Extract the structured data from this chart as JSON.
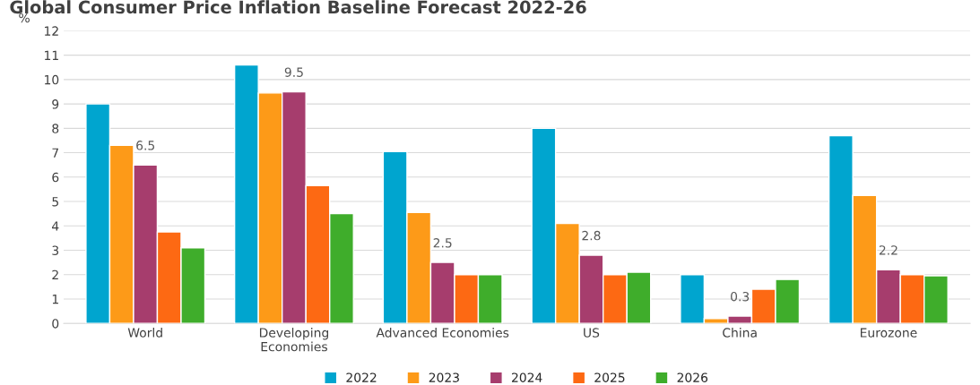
{
  "chart_data": {
    "type": "bar",
    "title": "Global Consumer Price Inflation Baseline Forecast 2022-26",
    "ylabel": "%",
    "categories": [
      "World",
      "Developing\nEconomies",
      "Advanced Economies",
      "US",
      "China",
      "Eurozone"
    ],
    "series": [
      {
        "name": "2022",
        "color": "#00a5cf",
        "values": [
          9.0,
          10.6,
          7.05,
          8.0,
          2.0,
          7.7
        ]
      },
      {
        "name": "2023",
        "color": "#fd9a18",
        "values": [
          7.3,
          9.45,
          4.55,
          4.1,
          0.2,
          5.25
        ]
      },
      {
        "name": "2024",
        "color": "#a63d6d",
        "values": [
          6.5,
          9.5,
          2.5,
          2.8,
          0.3,
          2.2
        ],
        "value_labels": [
          "6.5",
          "9.5",
          "2.5",
          "2.8",
          "0.3",
          "2.2"
        ]
      },
      {
        "name": "2025",
        "color": "#fd6913",
        "values": [
          3.75,
          5.65,
          2.0,
          2.0,
          1.4,
          2.0
        ]
      },
      {
        "name": "2026",
        "color": "#3fad2b",
        "values": [
          3.1,
          4.5,
          2.0,
          2.1,
          1.8,
          1.95
        ]
      }
    ],
    "ylim": [
      0,
      12
    ],
    "yticks": [
      0,
      1,
      2,
      3,
      4,
      5,
      6,
      7,
      8,
      9,
      10,
      11,
      12
    ],
    "grid": "y",
    "legend": "bottom"
  }
}
